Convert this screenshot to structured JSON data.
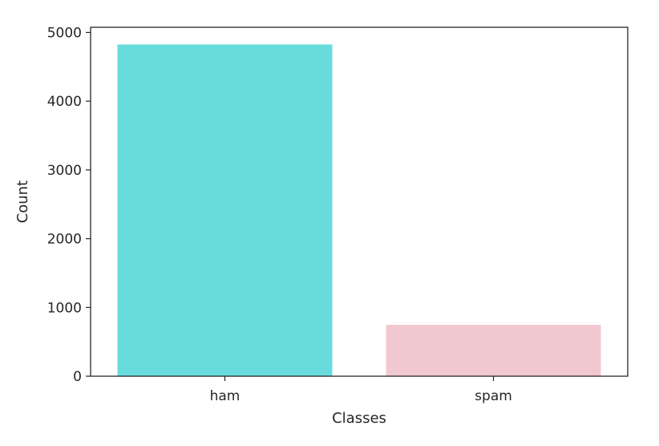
{
  "chart_data": {
    "type": "bar",
    "categories": [
      "ham",
      "spam"
    ],
    "values": [
      4825,
      747
    ],
    "colors": [
      "#68dcdc",
      "#f2c8d0"
    ],
    "xlabel": "Classes",
    "ylabel": "Count",
    "ylim": [
      0,
      5075
    ],
    "yticks": [
      0,
      1000,
      2000,
      3000,
      4000,
      5000
    ],
    "grid": false,
    "legend": "none"
  }
}
